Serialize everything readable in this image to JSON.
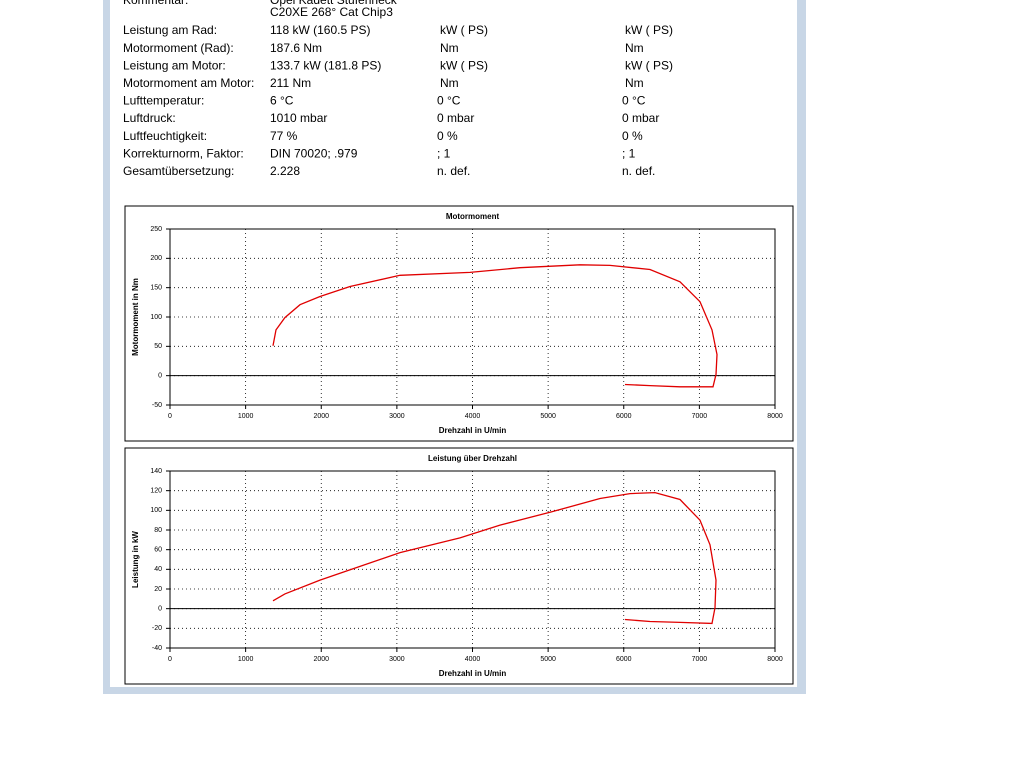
{
  "report": {
    "comment_label": "Kommentar:",
    "comment_lines": [
      "Opel Kadett Stufenheck",
      "C20XE 268° Cat Chip3"
    ],
    "rows": [
      [
        "Leistung am Rad:",
        "118 kW (160.5 PS)",
        "kW ( PS)",
        "kW ( PS)"
      ],
      [
        "Motormoment (Rad):",
        "187.6 Nm",
        "Nm",
        "Nm"
      ],
      [
        "Leistung am Motor:",
        "133.7 kW (181.8 PS)",
        "kW ( PS)",
        "kW ( PS)"
      ],
      [
        "Motormoment am Motor:",
        "211 Nm",
        "Nm",
        "Nm"
      ],
      [
        "Lufttemperatur:",
        "6 °C",
        "0 °C",
        "0 °C"
      ],
      [
        "Luftdruck:",
        "1010 mbar",
        "0 mbar",
        "0 mbar"
      ],
      [
        "Luftfeuchtigkeit:",
        "77 %",
        "0 %",
        "0 %"
      ],
      [
        "Korrekturnorm, Faktor:",
        "DIN 70020; .979",
        "; 1",
        "; 1"
      ],
      [
        "Gesamtübersetzung:",
        "2.228",
        "n. def.",
        "n. def."
      ]
    ]
  },
  "chart_data": [
    {
      "type": "line",
      "title": "Motormoment",
      "xlabel": "Drehzahl in U/min",
      "ylabel": "Motormoment in Nm",
      "x": [
        1362,
        1402,
        1520,
        1719,
        1983,
        2380,
        3041,
        3967,
        4628,
        5421,
        5818,
        6347,
        6744,
        7008,
        7167,
        7233,
        7220,
        7180,
        6744,
        6347,
        6017
      ],
      "series": [
        {
          "color": "#e00000",
          "values": [
            51,
            78,
            99,
            121,
            135,
            152,
            171,
            176,
            184,
            189,
            188,
            181,
            160,
            126,
            78,
            36,
            2,
            -19,
            -19,
            -17,
            -15
          ]
        }
      ],
      "xlim": [
        0,
        8000
      ],
      "xticks": [
        0,
        1000,
        2000,
        3000,
        4000,
        5000,
        6000,
        7000,
        8000
      ],
      "ylim": [
        -50,
        250
      ],
      "yticks": [
        -50,
        0,
        50,
        100,
        150,
        200,
        250
      ],
      "grid": true
    },
    {
      "type": "line",
      "title": "Leistung über Drehzahl",
      "xlabel": "Drehzahl in U/min",
      "ylabel": "Leistung in kW",
      "x": [
        1362,
        1520,
        1983,
        2512,
        3041,
        3835,
        4364,
        5025,
        5686,
        6083,
        6413,
        6744,
        7008,
        7140,
        7220,
        7206,
        7167,
        6744,
        6347,
        6017
      ],
      "series": [
        {
          "color": "#e00000",
          "values": [
            8,
            15,
            29,
            43,
            57,
            72,
            85,
            98,
            112,
            117,
            118,
            111,
            90,
            65,
            29,
            1,
            -15,
            -14,
            -13,
            -11
          ]
        }
      ],
      "xlim": [
        0,
        8000
      ],
      "xticks": [
        0,
        1000,
        2000,
        3000,
        4000,
        5000,
        6000,
        7000,
        8000
      ],
      "ylim": [
        -40,
        140
      ],
      "yticks": [
        -40,
        -20,
        0,
        20,
        40,
        60,
        80,
        100,
        120,
        140
      ],
      "grid": true
    }
  ]
}
